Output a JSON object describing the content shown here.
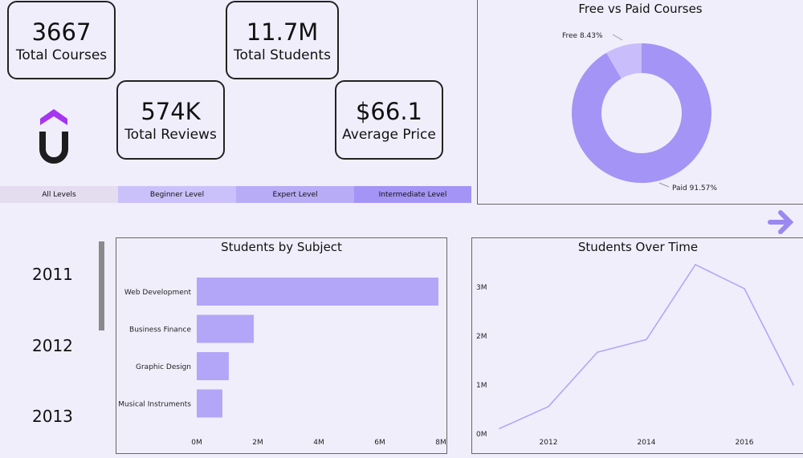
{
  "kpis": [
    {
      "value": "3667",
      "label": "Total Courses"
    },
    {
      "value": "11.7M",
      "label": "Total Students"
    },
    {
      "value": "574K",
      "label": "Total Reviews"
    },
    {
      "value": "$66.1",
      "label": "Average Price"
    }
  ],
  "logo": {
    "name": "udemy-logo",
    "colors": [
      "#a435f0",
      "#1c1d1f"
    ]
  },
  "slicer": {
    "items": [
      "All Levels",
      "Beginner Level",
      "Expert Level",
      "Intermediate Level"
    ],
    "colors": [
      "#e4ddf0",
      "#cbc1fa",
      "#b8acf7",
      "#a394f5"
    ]
  },
  "year_slicer": {
    "items": [
      "2011",
      "2012",
      "2013"
    ]
  },
  "nav": {
    "icon": "arrow-right-icon",
    "color": "#9b88f0"
  },
  "chart_data": [
    {
      "type": "pie",
      "title": "Free vs Paid Courses",
      "donut": true,
      "slices": [
        {
          "name": "Free",
          "value": 8.43,
          "label": "Free 8.43%",
          "color": "#c9bdfb"
        },
        {
          "name": "Paid",
          "value": 91.57,
          "label": "Paid 91.57%",
          "color": "#a394f5"
        }
      ]
    },
    {
      "type": "bar",
      "orientation": "horizontal",
      "title": "Students by Subject",
      "categories": [
        "Web Development",
        "Business Finance",
        "Graphic Design",
        "Musical Instruments"
      ],
      "values": [
        7.92,
        1.87,
        1.05,
        0.84
      ],
      "unit": "M",
      "xlim": [
        0,
        8
      ],
      "xticks": [
        "0M",
        "2M",
        "4M",
        "6M",
        "8M"
      ],
      "color": "#b3a6f8"
    },
    {
      "type": "line",
      "title": "Students Over Time",
      "x": [
        2011,
        2012,
        2013,
        2014,
        2015,
        2016,
        2017
      ],
      "y": [
        0.11,
        0.56,
        1.67,
        1.93,
        3.46,
        2.97,
        1.0
      ],
      "unit": "M",
      "ylim": [
        0,
        3.5
      ],
      "yticks": [
        "0M",
        "1M",
        "2M",
        "3M"
      ],
      "xticks": [
        "2012",
        "2014",
        "2016"
      ],
      "color": "#b3a6f8"
    }
  ]
}
